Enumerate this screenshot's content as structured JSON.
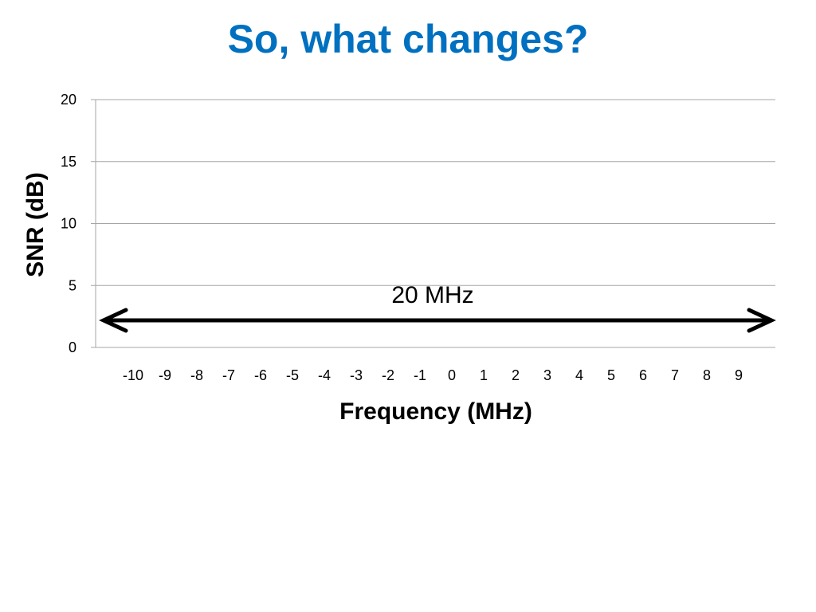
{
  "slide": {
    "title": "So, what changes?",
    "title_color": "#0070C0"
  },
  "chart_data": {
    "type": "line",
    "title": "",
    "xlabel": "Frequency (MHz)",
    "ylabel": "SNR (dB)",
    "categories": [
      "-10",
      "-9",
      "-8",
      "-7",
      "-6",
      "-5",
      "-4",
      "-3",
      "-2",
      "-1",
      "0",
      "1",
      "2",
      "3",
      "4",
      "5",
      "6",
      "7",
      "8",
      "9"
    ],
    "series": [],
    "ylim": [
      0,
      20
    ],
    "yticks": [
      "0",
      "5",
      "10",
      "15",
      "20"
    ],
    "grid": true,
    "gridline_color": "#A6A6A6",
    "annotations": [
      {
        "text": "20 MHz",
        "type": "double-arrow",
        "from": "-10",
        "to": "9"
      }
    ]
  }
}
